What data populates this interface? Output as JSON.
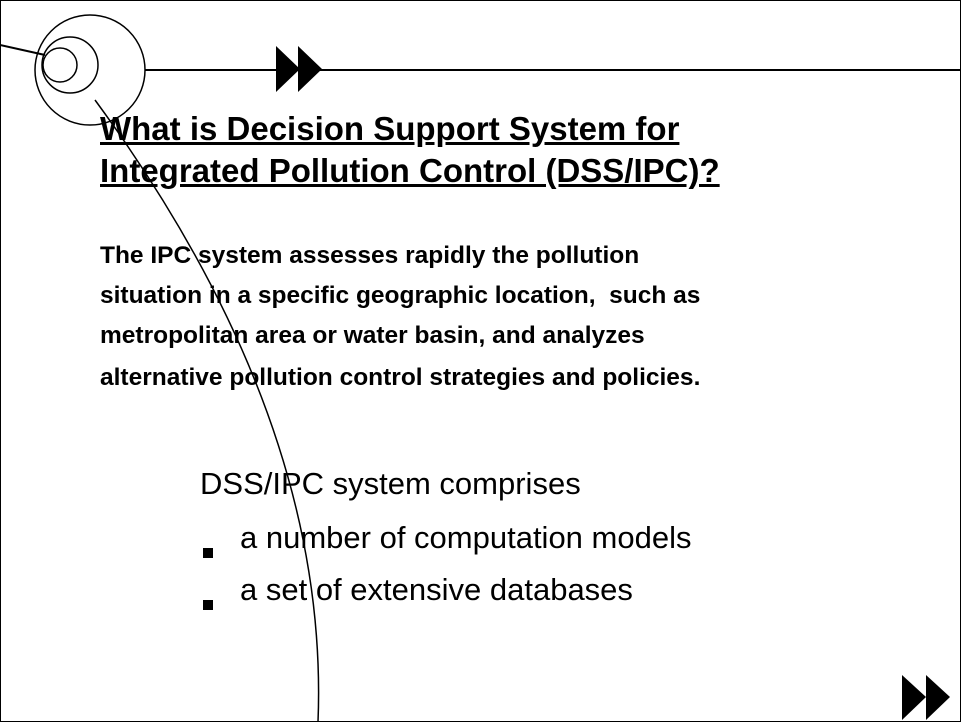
{
  "title": {
    "lines": [
      "What is Decision Support System for",
      "Integrated Pollution Control (DSS/IPC)?"
    ]
  },
  "paragraph": {
    "lines": [
      "The IPC system assesses rapidly the pollution",
      "situation in a specific geographic location,  such as",
      "metropolitan area or water basin, and analyzes",
      "alternative pollution control strategies and policies."
    ]
  },
  "list": {
    "heading": "DSS/IPC system comprises",
    "items": [
      "a number of computation models",
      "a set of extensive databases"
    ]
  }
}
